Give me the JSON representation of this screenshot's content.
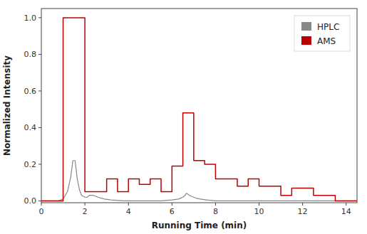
{
  "chart_data": {
    "type": "line",
    "xlabel": "Running Time (min)",
    "ylabel": "Normalized Intensity",
    "xlim": [
      0,
      14.5
    ],
    "ylim": [
      -0.01,
      1.05
    ],
    "xticks": [
      0,
      2,
      4,
      6,
      8,
      10,
      12,
      14
    ],
    "yticks": [
      {
        "value": 0,
        "label": "0.0"
      },
      0.2,
      0.4,
      0.6,
      0.8,
      {
        "value": 1.0,
        "label": "1.0"
      }
    ],
    "grid": false,
    "legend": "upper right",
    "series": [
      {
        "name": "HPLC",
        "color": "#888888",
        "x": [
          0.0,
          0.8,
          1.0,
          1.2,
          1.35,
          1.45,
          1.55,
          1.65,
          1.75,
          1.85,
          2.0,
          2.1,
          2.2,
          2.4,
          2.6,
          2.9,
          3.2,
          3.8,
          4.5,
          5.0,
          5.5,
          6.0,
          6.3,
          6.5,
          6.6,
          6.65,
          6.7,
          6.8,
          6.9,
          7.0,
          7.1,
          7.3,
          7.6,
          8.0,
          9.0,
          10.0,
          11.0,
          12.0,
          13.0,
          14.0,
          14.5
        ],
        "values": [
          0.0,
          0.0,
          0.01,
          0.05,
          0.13,
          0.22,
          0.22,
          0.12,
          0.06,
          0.03,
          0.02,
          0.02,
          0.03,
          0.03,
          0.02,
          0.01,
          0.005,
          0.0,
          0.0,
          0.0,
          0.0,
          0.005,
          0.01,
          0.02,
          0.03,
          0.04,
          0.04,
          0.03,
          0.025,
          0.02,
          0.015,
          0.01,
          0.005,
          0.0,
          0.0,
          0.0,
          0.0,
          0.0,
          0.0,
          0.0,
          0.0
        ]
      },
      {
        "name": "AMS",
        "color": "#bb0000",
        "x": [
          0.0,
          1.0,
          1.0,
          2.0,
          2.0,
          2.5,
          2.5,
          3.0,
          3.0,
          3.5,
          3.5,
          4.0,
          4.0,
          4.5,
          4.5,
          5.0,
          5.0,
          5.5,
          5.5,
          6.0,
          6.0,
          6.5,
          6.5,
          7.0,
          7.0,
          7.5,
          7.5,
          8.0,
          8.0,
          8.5,
          8.5,
          9.0,
          9.0,
          9.5,
          9.5,
          10.0,
          10.0,
          10.5,
          10.5,
          11.0,
          11.0,
          11.5,
          11.5,
          12.5,
          12.5,
          13.5,
          13.5,
          14.5
        ],
        "values": [
          0.0,
          0.0,
          1.0,
          1.0,
          0.05,
          0.05,
          0.05,
          0.05,
          0.12,
          0.12,
          0.05,
          0.05,
          0.12,
          0.12,
          0.09,
          0.09,
          0.12,
          0.12,
          0.05,
          0.05,
          0.19,
          0.19,
          0.48,
          0.48,
          0.22,
          0.22,
          0.2,
          0.2,
          0.12,
          0.12,
          0.12,
          0.12,
          0.08,
          0.08,
          0.12,
          0.12,
          0.08,
          0.08,
          0.08,
          0.08,
          0.03,
          0.03,
          0.07,
          0.07,
          0.03,
          0.03,
          0.0,
          0.0
        ]
      }
    ]
  }
}
